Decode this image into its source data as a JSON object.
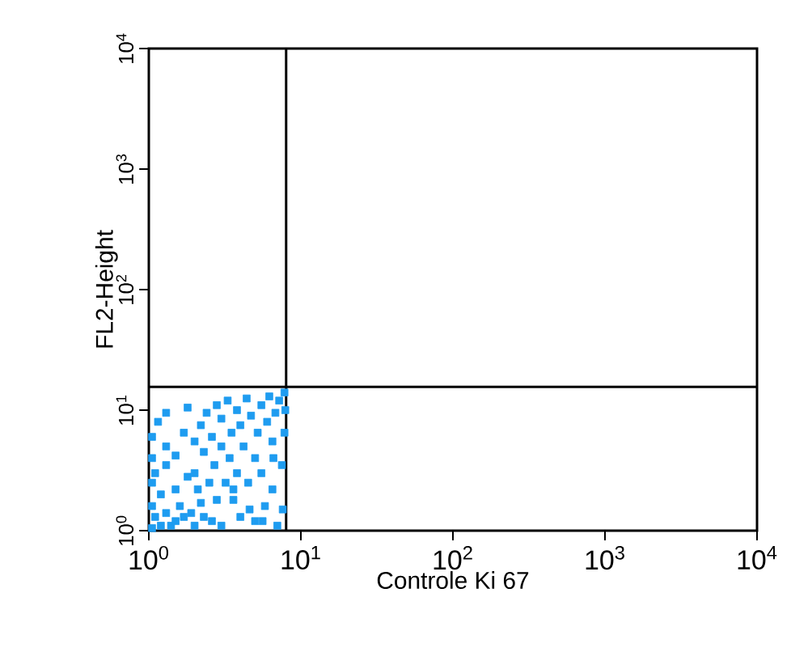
{
  "chart_data": {
    "type": "scatter",
    "xlabel": "Controle Ki 67",
    "ylabel": "FL2-Height",
    "log": "xy",
    "grid": false,
    "marker": "square",
    "xlim": [
      1,
      10000
    ],
    "ylim": [
      1,
      10000
    ],
    "xticks": [
      {
        "value": 1,
        "label": "10$^{0}$"
      },
      {
        "value": 10,
        "label": "10$^{1}$"
      },
      {
        "value": 100,
        "label": "10$^{2}$"
      },
      {
        "value": 1000,
        "label": "10$^{3}$"
      },
      {
        "value": 10000,
        "label": "10$^{4}$"
      }
    ],
    "yticks": [
      {
        "value": 1,
        "label": "10$^{0}$"
      },
      {
        "value": 10,
        "label": "10$^{1}$"
      },
      {
        "value": 100,
        "label": "10$^{2}$"
      },
      {
        "value": 1000,
        "label": "10$^{3}$"
      },
      {
        "value": 10000,
        "label": "10$^{4}$"
      }
    ],
    "ref_lines": [
      {
        "axis": "x",
        "value": 8,
        "color": "#000000"
      },
      {
        "axis": "y",
        "value": 15.6,
        "color": "#000000"
      }
    ],
    "series": [
      {
        "color": "#1e9cf0",
        "x": [
          1.05,
          1.05,
          1.05,
          1.05,
          1.05,
          1.1,
          1.1,
          1.15,
          1.2,
          1.2,
          1.3,
          1.3,
          1.3,
          1.4,
          1.5,
          1.5,
          1.5,
          1.6,
          1.7,
          1.7,
          1.8,
          1.9,
          2.0,
          2.0,
          2.0,
          2.1,
          2.2,
          2.3,
          2.3,
          2.4,
          2.5,
          2.6,
          2.6,
          2.7,
          2.8,
          3.0,
          3.0,
          3.0,
          3.2,
          3.3,
          3.4,
          3.5,
          3.6,
          3.8,
          3.8,
          4.0,
          4.0,
          4.2,
          4.4,
          4.5,
          4.7,
          5.0,
          5.0,
          5.2,
          5.5,
          5.5,
          5.8,
          6.0,
          6.2,
          6.5,
          6.5,
          6.8,
          7.0,
          7.2,
          7.5,
          7.8,
          7.8,
          2.8,
          3.6,
          4.6,
          5.6,
          6.6,
          2.2,
          1.8,
          1.3,
          7.6,
          7.9
        ],
        "values": [
          1.05,
          1.6,
          2.5,
          4.0,
          6.0,
          1.3,
          3.0,
          8.0,
          1.1,
          2.0,
          1.4,
          3.5,
          5.0,
          1.1,
          1.2,
          2.2,
          4.2,
          1.6,
          1.3,
          6.5,
          2.8,
          1.4,
          1.1,
          3.0,
          5.5,
          2.2,
          7.5,
          1.3,
          4.5,
          9.5,
          2.5,
          1.2,
          6.0,
          3.5,
          11.0,
          1.1,
          5.0,
          8.5,
          2.5,
          12.0,
          4.0,
          6.5,
          1.8,
          3.0,
          10.0,
          1.3,
          7.5,
          5.0,
          12.5,
          2.5,
          9.0,
          1.2,
          4.0,
          6.5,
          3.0,
          11.0,
          1.6,
          8.0,
          13.0,
          2.2,
          5.5,
          9.5,
          1.1,
          12.0,
          3.5,
          6.5,
          14.0,
          1.8,
          2.2,
          1.5,
          1.2,
          4.0,
          1.7,
          10.5,
          9.5,
          1.5,
          10.0
        ]
      }
    ]
  }
}
